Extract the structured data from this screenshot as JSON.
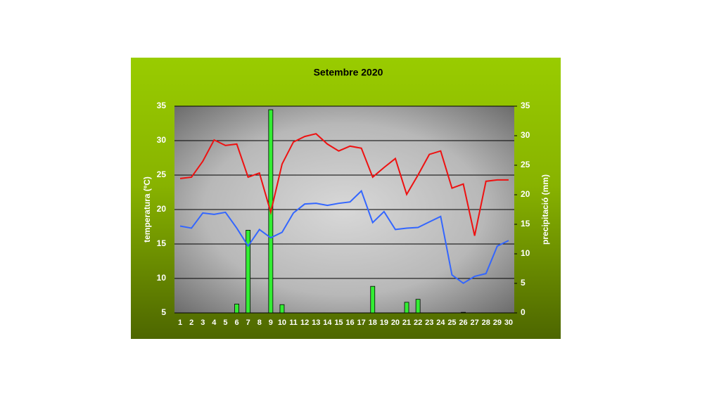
{
  "chart_data": {
    "type": "line",
    "title": "Setembre 2020",
    "ylabel": "temperatura (ºC)",
    "y2label": "precipitació (mm)",
    "categories": [
      "1",
      "2",
      "3",
      "4",
      "5",
      "6",
      "7",
      "8",
      "9",
      "10",
      "11",
      "12",
      "13",
      "14",
      "15",
      "16",
      "17",
      "18",
      "19",
      "20",
      "21",
      "22",
      "23",
      "24",
      "25",
      "26",
      "27",
      "28",
      "29",
      "30"
    ],
    "series": [
      {
        "type": "bar",
        "axis": "y2",
        "color": "#33ee33",
        "values": [
          0,
          0,
          0,
          0,
          0,
          1.5,
          14,
          0,
          34.4,
          1.4,
          0,
          0,
          0,
          0,
          0,
          0,
          0,
          4.5,
          0,
          0,
          1.8,
          2.3,
          0,
          0,
          0,
          0.1,
          0,
          0,
          0,
          0
        ]
      },
      {
        "type": "line",
        "color": "#ee1111",
        "values": [
          24.5,
          24.7,
          27,
          30.1,
          29.3,
          29.5,
          24.7,
          25.3,
          19.6,
          26.6,
          29.8,
          30.6,
          31,
          29.5,
          28.5,
          29.2,
          28.9,
          24.7,
          26.1,
          27.4,
          22.2,
          25,
          28,
          28.5,
          23.1,
          23.7,
          16.2,
          24.1,
          24.3,
          24.3
        ]
      },
      {
        "type": "line",
        "color": "#3366ff",
        "values": [
          17.6,
          17.3,
          19.5,
          19.3,
          19.6,
          17.3,
          14.7,
          17.1,
          15.9,
          16.7,
          19.5,
          20.8,
          20.9,
          20.6,
          20.9,
          21.1,
          22.7,
          18.1,
          19.7,
          17.1,
          17.3,
          17.4,
          18.2,
          19,
          10.5,
          9.3,
          10.3,
          10.7,
          14.7,
          15.5
        ]
      }
    ],
    "ylim": [
      5,
      35
    ],
    "yticks": [
      5,
      10,
      15,
      20,
      25,
      30,
      35
    ],
    "y2lim": [
      0,
      35
    ],
    "y2ticks": [
      0,
      5,
      10,
      15,
      20,
      25,
      30,
      35
    ],
    "grid": true
  }
}
